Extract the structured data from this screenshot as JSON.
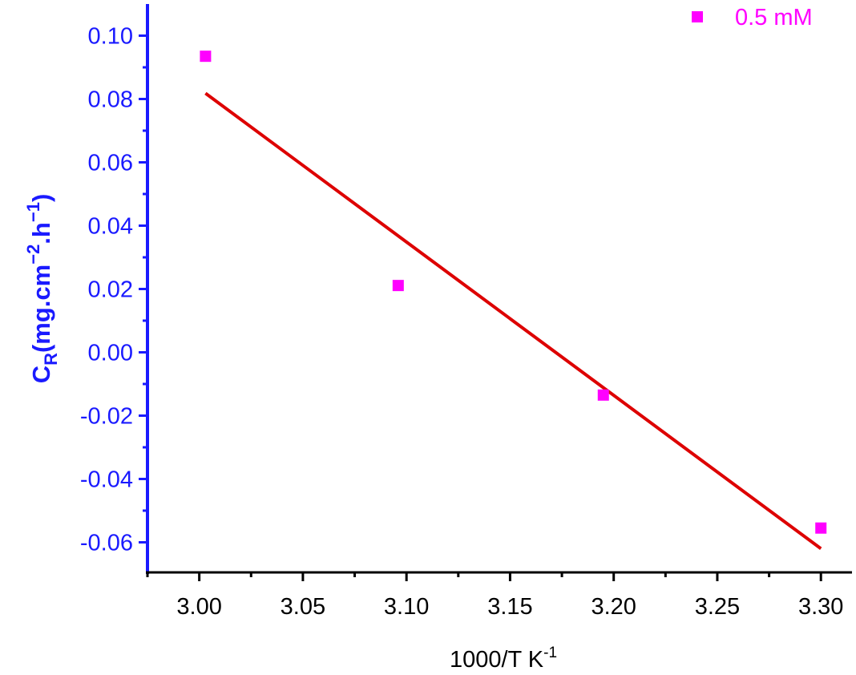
{
  "chart_data": {
    "type": "scatter",
    "xlabel": {
      "base": "1000/T K",
      "sup": "-1"
    },
    "ylabel": {
      "c": "C",
      "sub": "R",
      "open": "(mg.cm",
      "sup1": "−2",
      "mid": ".h",
      "sup2": "−1",
      "close": ")"
    },
    "xlim": [
      2.975,
      3.315
    ],
    "ylim": [
      -0.0695,
      0.11
    ],
    "xticks": [
      "3.00",
      "3.05",
      "3.10",
      "3.15",
      "3.20",
      "3.25",
      "3.30"
    ],
    "yticks": [
      "0.10",
      "0.08",
      "0.06",
      "0.04",
      "0.02",
      "0.00",
      "-0.02",
      "-0.04",
      "-0.06"
    ],
    "grid": false,
    "legend_position": "top-right",
    "series": [
      {
        "name": "0.5 mM",
        "marker": "square",
        "color": "#ff00ff",
        "x": [
          3.003,
          3.096,
          3.195,
          3.3
        ],
        "y": [
          0.0935,
          0.0211,
          -0.0135,
          -0.0555
        ]
      }
    ],
    "fit_line": {
      "color": "#dd0000",
      "x": [
        3.003,
        3.3
      ],
      "y": [
        0.0818,
        -0.062
      ]
    },
    "colors": {
      "y_axis": "#1a1aff",
      "x_axis": "#000000",
      "marker": "#ff00ff",
      "fit": "#dd0000"
    }
  }
}
